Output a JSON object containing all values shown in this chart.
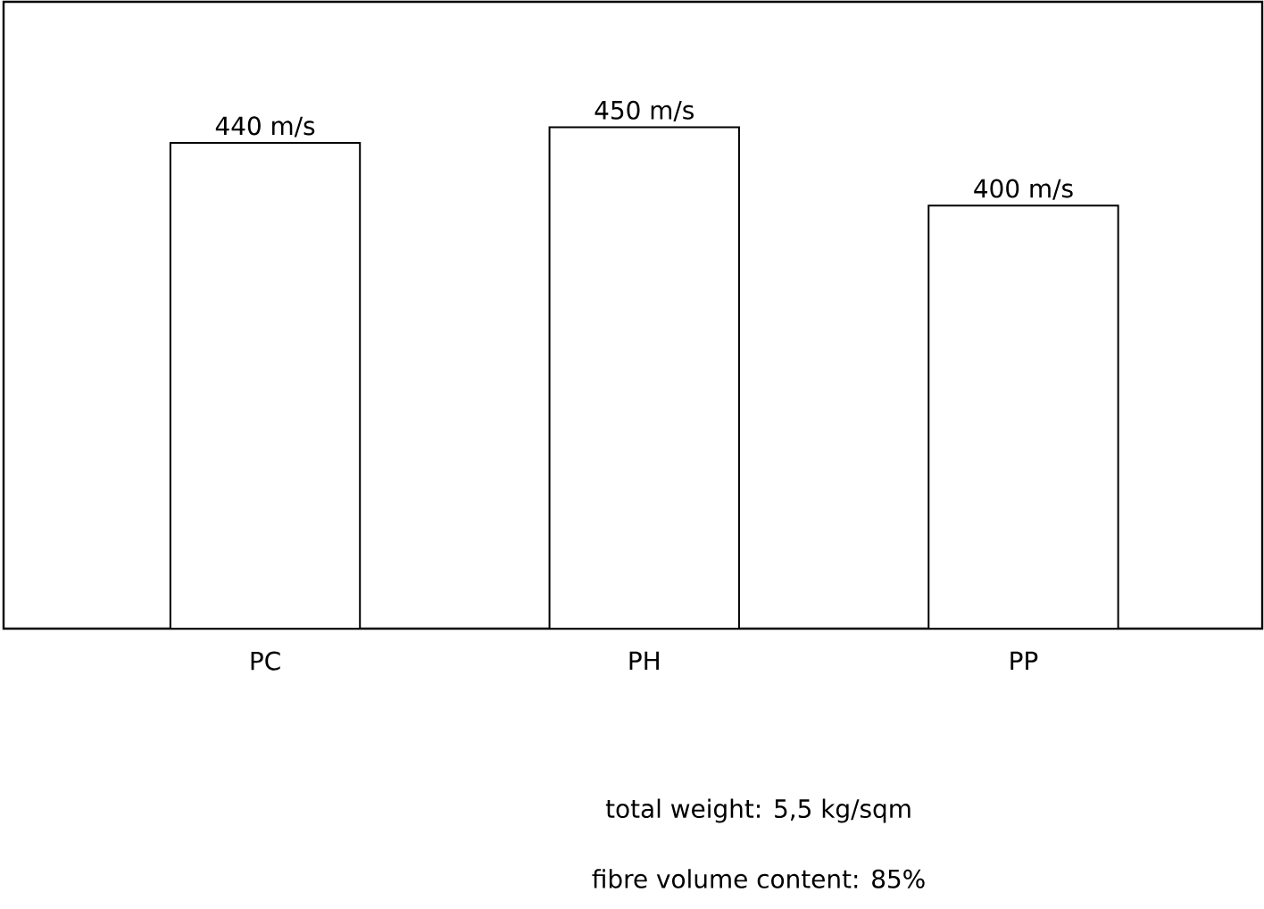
{
  "chart_data": {
    "type": "bar",
    "categories": [
      "PC",
      "PH",
      "PP"
    ],
    "values": [
      440,
      450,
      400
    ],
    "value_labels": [
      "440 m/s",
      "450 m/s",
      "400 m/s"
    ],
    "color": "#ffffff",
    "ylim": [
      130,
      530
    ],
    "tick_labels": "x",
    "annotations": [
      "total weight: 5,5 kg/sqm",
      "fibre volume content: 85%"
    ]
  }
}
